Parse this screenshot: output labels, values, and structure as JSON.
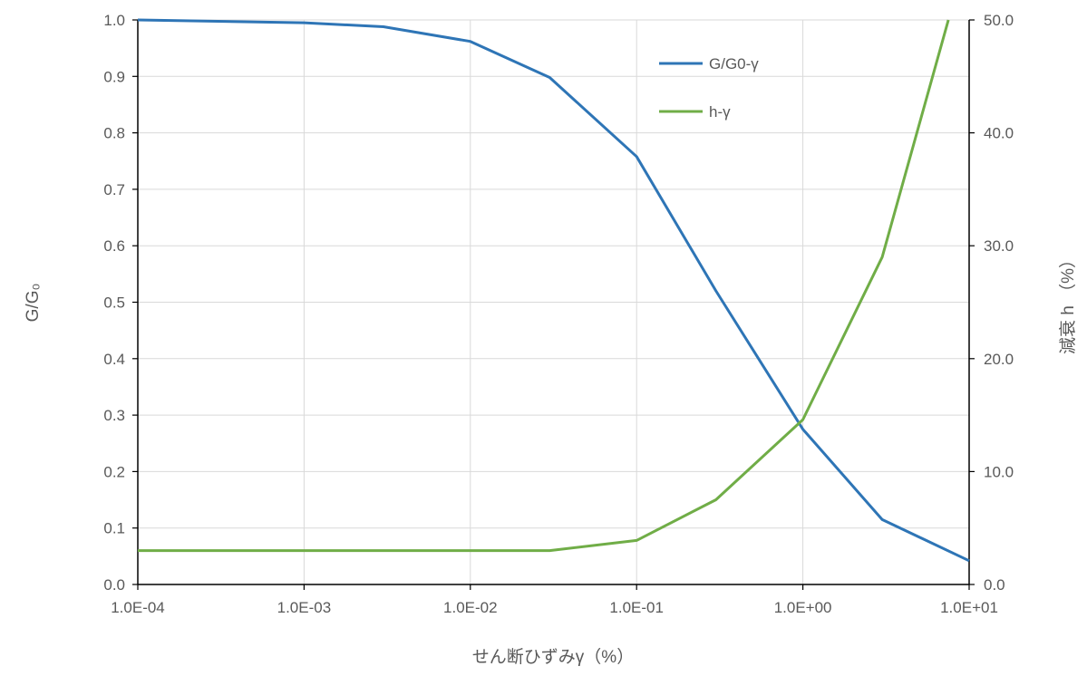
{
  "chart_data": {
    "type": "line",
    "x_scale": "log",
    "xlabel": "せん断ひずみγ（%）",
    "ylabel_left": "G/G₀",
    "ylabel_right": "減衰 h （%）",
    "xlim": [
      0.0001,
      10
    ],
    "ylim_left": [
      0,
      1
    ],
    "ylim_right": [
      0,
      50
    ],
    "grid": true,
    "legend_position": "top-right",
    "x_tick_labels": [
      "1.0E-04",
      "1.0E-03",
      "1.0E-02",
      "1.0E-01",
      "1.0E+00",
      "1.0E+01"
    ],
    "y_left_tick_labels": [
      "0.0",
      "0.1",
      "0.2",
      "0.3",
      "0.4",
      "0.5",
      "0.6",
      "0.7",
      "0.8",
      "0.9",
      "1.0"
    ],
    "y_right_tick_labels": [
      "0.0",
      "10.0",
      "20.0",
      "30.0",
      "40.0",
      "50.0"
    ],
    "series": [
      {
        "name": "G/G0-γ",
        "axis": "left",
        "color": "#2E75B6",
        "x": [
          0.0001,
          0.001,
          0.003,
          0.01,
          0.03,
          0.1,
          0.3,
          1,
          3,
          10
        ],
        "y": [
          1.0,
          0.995,
          0.988,
          0.962,
          0.898,
          0.758,
          0.52,
          0.275,
          0.115,
          0.042
        ]
      },
      {
        "name": "h-γ",
        "axis": "right",
        "color": "#70AD47",
        "x": [
          0.0001,
          0.001,
          0.01,
          0.03,
          0.1,
          0.3,
          1,
          3,
          7.5
        ],
        "y": [
          3.0,
          3.0,
          3.0,
          3.0,
          3.9,
          7.5,
          14.6,
          29.0,
          50.0
        ]
      }
    ]
  }
}
